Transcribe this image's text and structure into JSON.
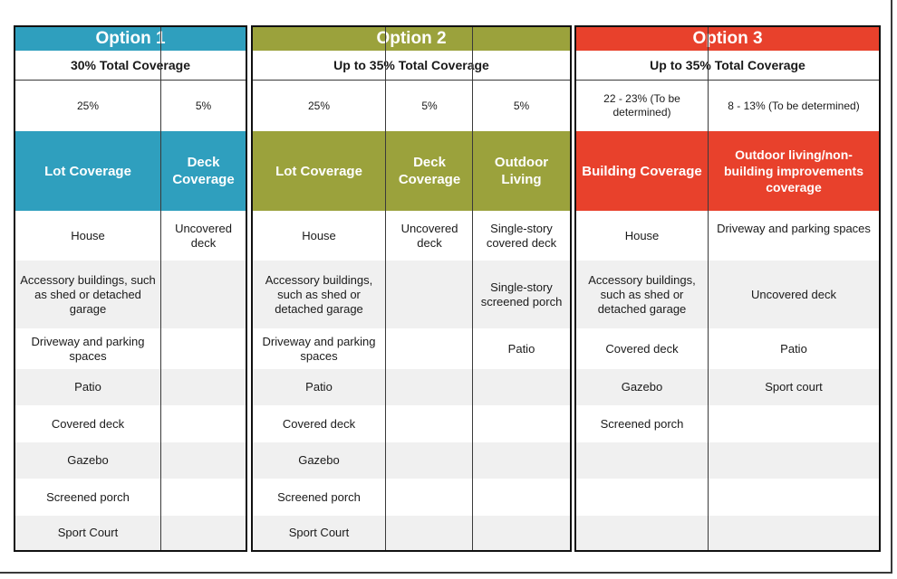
{
  "colors": {
    "option1": "#2f9fbe",
    "option2": "#9ba23c",
    "option3": "#e8412c"
  },
  "option1": {
    "title": "Option 1",
    "total": "30% Total Coverage",
    "columns": [
      {
        "percent": "25%",
        "header": "Lot Coverage",
        "items": [
          "House",
          "Accessory buildings, such as shed or detached garage",
          "Driveway and parking spaces",
          "Patio",
          "Covered deck",
          "Gazebo",
          "Screened porch",
          "Sport Court"
        ]
      },
      {
        "percent": "5%",
        "header": "Deck Coverage",
        "items": [
          "Uncovered deck",
          "",
          "",
          "",
          "",
          "",
          "",
          ""
        ]
      }
    ]
  },
  "option2": {
    "title": "Option 2",
    "total": "Up to 35% Total Coverage",
    "columns": [
      {
        "percent": "25%",
        "header": "Lot Coverage",
        "items": [
          "House",
          "Accessory buildings, such as shed or detached garage",
          "Driveway and parking spaces",
          "Patio",
          "Covered deck",
          "Gazebo",
          "Screened porch",
          "Sport Court"
        ]
      },
      {
        "percent": "5%",
        "header": "Deck Coverage",
        "items": [
          "Uncovered deck",
          "",
          "",
          "",
          "",
          "",
          "",
          ""
        ]
      },
      {
        "percent": "5%",
        "header": "Outdoor Living",
        "items": [
          "Single-story covered deck",
          "Single-story screened porch",
          "Patio",
          "",
          "",
          "",
          "",
          ""
        ]
      }
    ]
  },
  "option3": {
    "title": "Option 3",
    "total": "Up to 35% Total Coverage",
    "columns": [
      {
        "percent": "22 - 23% (To be determined)",
        "header": "Building Coverage",
        "items": [
          "House",
          "Accessory buildings, such as shed or detached garage",
          "Covered deck",
          "Gazebo",
          "Screened porch",
          "",
          "",
          ""
        ]
      },
      {
        "percent": "8 - 13% (To be determined)",
        "header": "Outdoor living/non-building improvements coverage",
        "items": [
          "Driveway and parking spaces",
          "Uncovered deck",
          "Patio",
          "Sport court",
          "",
          "",
          "",
          ""
        ]
      }
    ]
  }
}
